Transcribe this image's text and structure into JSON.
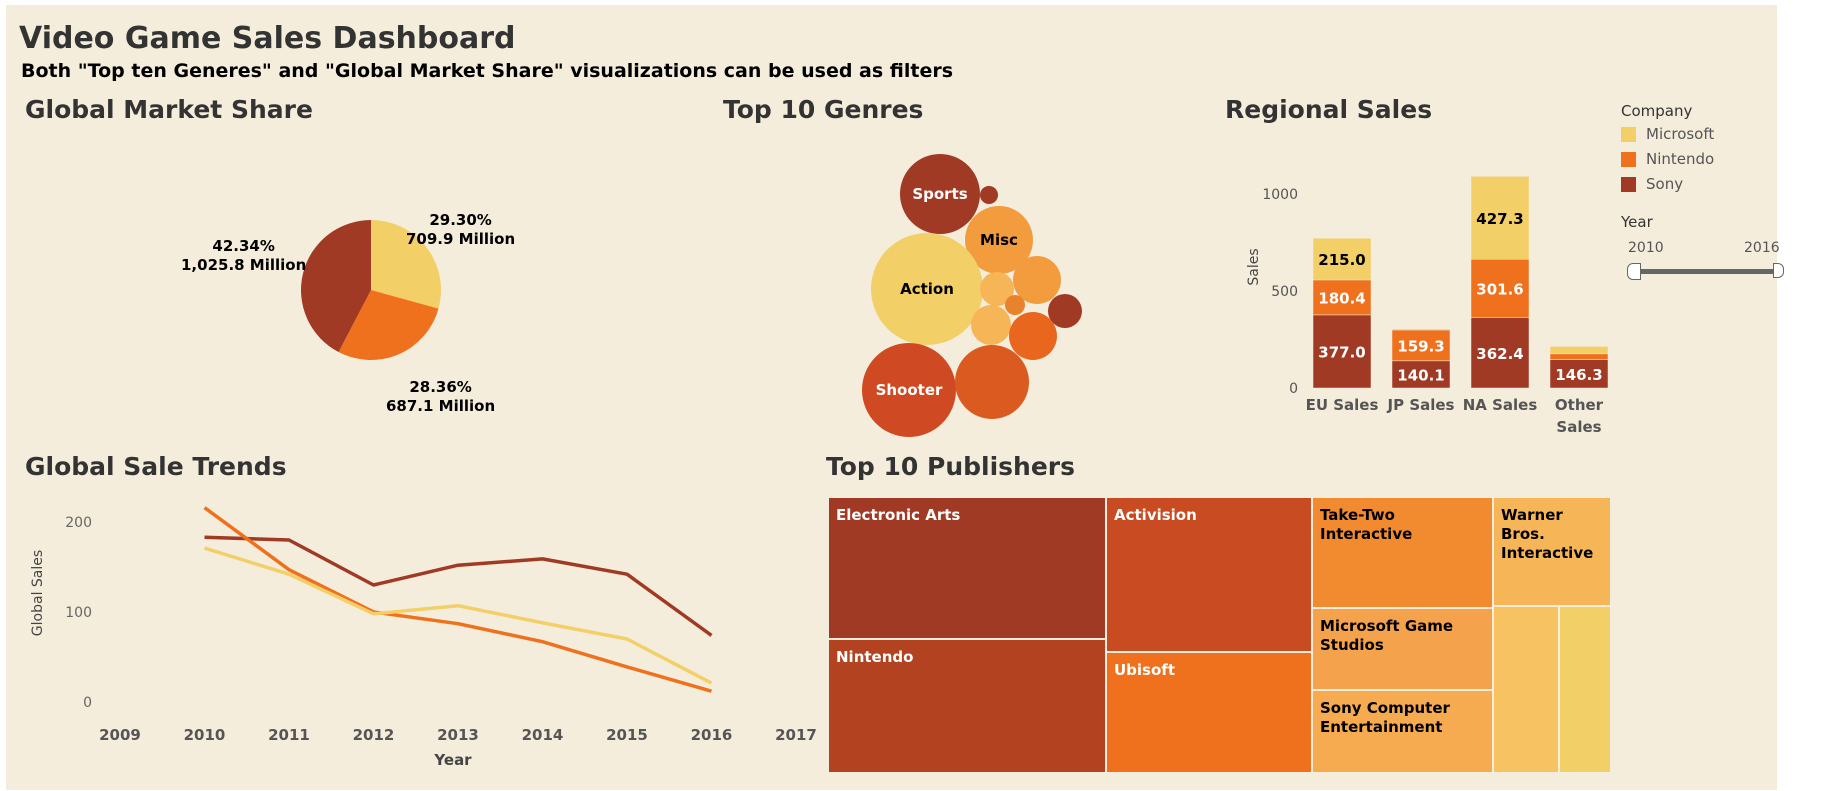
{
  "header": {
    "title": "Video Game Sales Dashboard",
    "subtitle": "Both \"Top ten Generes\" and \"Global Market Share\" visualizations can be used as filters"
  },
  "colors": {
    "microsoft": "#f3cf67",
    "nintendo": "#ef711e",
    "sony": "#a03a24"
  },
  "market_share": {
    "title": "Global Market Share",
    "chart_data": {
      "type": "pie",
      "slices": [
        {
          "name": "Microsoft",
          "percent": "29.30%",
          "value_label": "709.9 Million",
          "value": 709.9
        },
        {
          "name": "Nintendo",
          "percent": "28.36%",
          "value_label": "687.1 Million",
          "value": 687.1
        },
        {
          "name": "Sony",
          "percent": "42.34%",
          "value_label": "1,025.8 Million",
          "value": 1025.8
        }
      ]
    }
  },
  "genres": {
    "title": "Top 10 Genres",
    "bubbles": [
      {
        "label": "Sports",
        "color": "#a03a24"
      },
      {
        "label": "",
        "color": "#a03a24"
      },
      {
        "label": "Misc",
        "color": "#f39c3e"
      },
      {
        "label": "Action",
        "color": "#f3cf67"
      },
      {
        "label": "",
        "color": "#f6b556"
      },
      {
        "label": "",
        "color": "#f39c3e"
      },
      {
        "label": "",
        "color": "#e8822c"
      },
      {
        "label": "",
        "color": "#a03a24"
      },
      {
        "label": "",
        "color": "#f6b556"
      },
      {
        "label": "",
        "color": "#e8661e"
      },
      {
        "label": "Shooter",
        "color": "#cf4a22"
      },
      {
        "label": "",
        "color": "#db5a20"
      }
    ]
  },
  "regional": {
    "title": "Regional Sales",
    "chart_data": {
      "type": "bar",
      "stacked": true,
      "categories": [
        "EU Sales",
        "JP Sales",
        "NA Sales",
        "Other Sales"
      ],
      "ylabel": "Sales",
      "yticks": [
        0,
        500,
        1000
      ],
      "ylim": [
        0,
        1150
      ],
      "series": [
        {
          "name": "Sony",
          "values": [
            377.0,
            140.1,
            362.4,
            146.3
          ],
          "labels": [
            "377.0",
            "140.1",
            "362.4",
            "146.3"
          ]
        },
        {
          "name": "Nintendo",
          "values": [
            180.4,
            159.3,
            301.6,
            30
          ],
          "labels": [
            "180.4",
            "159.3",
            "301.6",
            ""
          ]
        },
        {
          "name": "Microsoft",
          "values": [
            215.0,
            6,
            427.3,
            38
          ],
          "labels": [
            "215.0",
            "",
            "427.3",
            ""
          ]
        }
      ]
    }
  },
  "legend": {
    "title": "Company",
    "items": [
      "Microsoft",
      "Nintendo",
      "Sony"
    ]
  },
  "year_filter": {
    "title": "Year",
    "min": "2010",
    "max": "2016"
  },
  "trends": {
    "title": "Global Sale Trends",
    "chart_data": {
      "type": "line",
      "xlabel": "Year",
      "ylabel": "Global Sales",
      "xticks": [
        "2009",
        "2010",
        "2011",
        "2012",
        "2013",
        "2014",
        "2015",
        "2016",
        "2017"
      ],
      "yticks": [
        0,
        100,
        200
      ],
      "xlim": [
        2009,
        2017
      ],
      "ylim": [
        0,
        230
      ],
      "x": [
        2010,
        2011,
        2012,
        2013,
        2014,
        2015,
        2016
      ],
      "series": [
        {
          "name": "Sony",
          "values": [
            183,
            180,
            130,
            152,
            159,
            142,
            74
          ]
        },
        {
          "name": "Nintendo",
          "values": [
            216,
            147,
            100,
            87,
            67,
            39,
            12
          ]
        },
        {
          "name": "Microsoft",
          "values": [
            171,
            142,
            98,
            107,
            88,
            70,
            21
          ]
        }
      ]
    }
  },
  "publishers": {
    "title": "Top 10 Publishers",
    "items": [
      {
        "label": "Electronic Arts",
        "color": "#a03a24",
        "text_color": "#ffffff"
      },
      {
        "label": "Nintendo",
        "color": "#b34320",
        "text_color": "#ffffff"
      },
      {
        "label": "Activision",
        "color": "#c84b22",
        "text_color": "#ffffff"
      },
      {
        "label": "Ubisoft",
        "color": "#ef711e",
        "text_color": "#ffffff"
      },
      {
        "label": "Take-Two Interactive",
        "color": "#f28b30",
        "text_color": "#000000"
      },
      {
        "label": "Microsoft Game Studios",
        "color": "#f5a24c",
        "text_color": "#000000"
      },
      {
        "label": "Sony Computer Entertainment",
        "color": "#f6ab50",
        "text_color": "#000000"
      },
      {
        "label": "Warner Bros. Interactive",
        "color": "#f6b556",
        "text_color": "#000000"
      },
      {
        "label": "",
        "color": "#f6c262",
        "text_color": "#000000"
      },
      {
        "label": "",
        "color": "#f3cf67",
        "text_color": "#000000"
      }
    ]
  }
}
